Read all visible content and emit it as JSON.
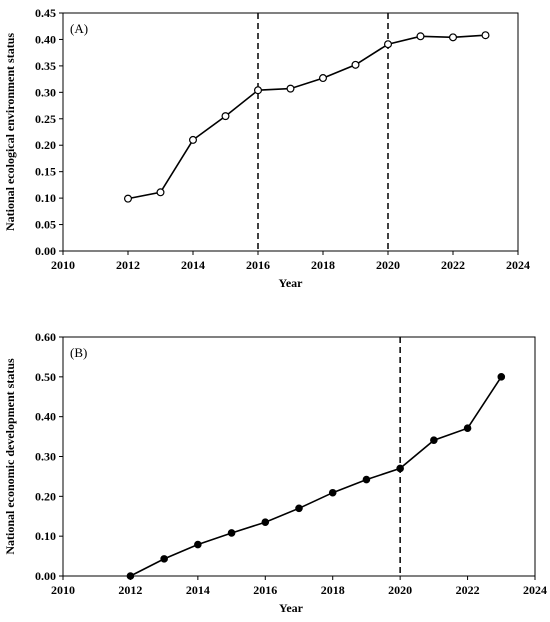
{
  "chart_data": [
    {
      "type": "line",
      "panel_label": "(A)",
      "xlabel": "Year",
      "ylabel": "National ecological environment status",
      "xlim": [
        2010,
        2024
      ],
      "ylim": [
        0,
        0.45
      ],
      "x_ticks": [
        2010,
        2012,
        2014,
        2016,
        2018,
        2020,
        2022,
        2024
      ],
      "y_ticks": [
        "0.00",
        "0.05",
        "0.10",
        "0.15",
        "0.20",
        "0.25",
        "0.30",
        "0.35",
        "0.40",
        "0.45"
      ],
      "grid": false,
      "marker": "open-circle",
      "vlines": [
        2016,
        2020
      ],
      "x": [
        2012,
        2013,
        2014,
        2015,
        2016,
        2017,
        2018,
        2019,
        2020,
        2021,
        2022,
        2023
      ],
      "values": [
        0.099,
        0.111,
        0.21,
        0.255,
        0.304,
        0.307,
        0.327,
        0.352,
        0.391,
        0.406,
        0.404,
        0.408
      ]
    },
    {
      "type": "line",
      "panel_label": "(B)",
      "xlabel": "Year",
      "ylabel": "National economic development status",
      "xlim": [
        2010,
        2024
      ],
      "ylim": [
        0,
        0.6
      ],
      "x_ticks": [
        2010,
        2012,
        2014,
        2016,
        2018,
        2020,
        2022,
        2024
      ],
      "y_ticks": [
        "0.00",
        "0.10",
        "0.20",
        "0.30",
        "0.40",
        "0.50",
        "0.60"
      ],
      "grid": false,
      "marker": "filled-circle",
      "vlines": [
        2020
      ],
      "x": [
        2012,
        2013,
        2014,
        2015,
        2016,
        2017,
        2018,
        2019,
        2020,
        2021,
        2022,
        2023
      ],
      "values": [
        0.0,
        0.043,
        0.079,
        0.108,
        0.135,
        0.17,
        0.209,
        0.242,
        0.27,
        0.341,
        0.371,
        0.5
      ]
    }
  ]
}
